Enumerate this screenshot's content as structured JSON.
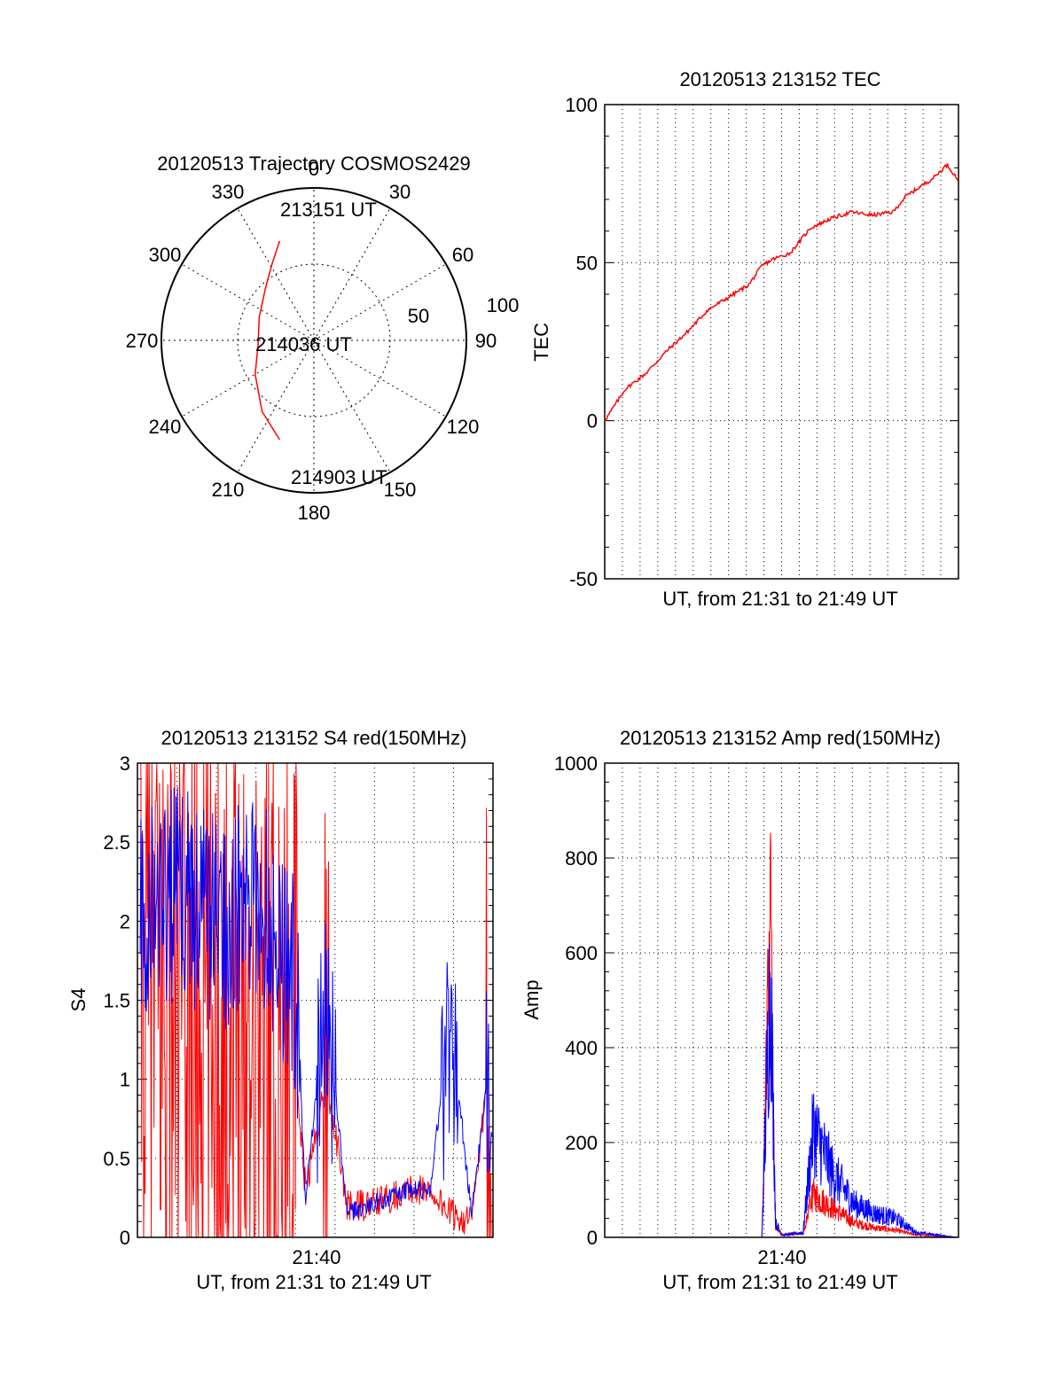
{
  "colors": {
    "red": "#ff0000",
    "blue": "#0000ff",
    "axis": "#000000",
    "grid": "#000000"
  },
  "chart_data": [
    {
      "type": "polar",
      "title": "20120513 Trajectory COSMOS2429",
      "angle_labels": [
        "0",
        "30",
        "60",
        "90",
        "120",
        "150",
        "180",
        "210",
        "240",
        "270",
        "300",
        "330"
      ],
      "radial_labels": [
        "50",
        "100"
      ],
      "rlim": [
        0,
        100
      ],
      "start_label": "213151 UT",
      "mid_label": "214036 UT",
      "end_label": "214903 UT",
      "track": {
        "name": "",
        "color": "#ff0000",
        "points": [
          {
            "az": 341,
            "el": 28
          },
          {
            "az": 332,
            "el": 38
          },
          {
            "az": 317,
            "el": 48
          },
          {
            "az": 293,
            "el": 55
          },
          {
            "az": 266,
            "el": 57
          },
          {
            "az": 240,
            "el": 50
          },
          {
            "az": 216,
            "el": 38
          },
          {
            "az": 199,
            "el": 28
          }
        ]
      }
    },
    {
      "type": "line",
      "title": "20120513 213152 TEC",
      "xlabel": "UT, from 21:31 to 21:49 UT",
      "ylabel": "TEC",
      "xlim": [
        "21:31:52",
        "21:49:03"
      ],
      "ylim": [
        -50,
        100
      ],
      "ytick_labels": [
        "100",
        "50",
        "0",
        "-50"
      ],
      "series": [
        {
          "name": "",
          "color": "#ff0000",
          "x": [
            "21:31:52",
            "21:32:52",
            "21:33:52",
            "21:34:52",
            "21:35:52",
            "21:36:52",
            "21:37:52",
            "21:38:52",
            "21:39:30",
            "21:40:00",
            "21:40:52",
            "21:41:52",
            "21:42:52",
            "21:43:52",
            "21:44:52",
            "21:45:52",
            "21:46:30",
            "21:47:52",
            "21:48:30",
            "21:49:03"
          ],
          "y": [
            0,
            10,
            15,
            22,
            28,
            35,
            39,
            43,
            49,
            51,
            53,
            61,
            64,
            66,
            65,
            66,
            71,
            77,
            81,
            76
          ]
        }
      ]
    },
    {
      "type": "line",
      "title": "20120513 213152 S4 red(150MHz)",
      "xlabel": "UT, from 21:31 to 21:49 UT",
      "ylabel": "S4",
      "xlim": [
        "21:31:52",
        "21:49:03"
      ],
      "ylim": [
        0,
        3
      ],
      "xtick_labels": [
        "21:40"
      ],
      "ytick_labels": [
        "3",
        "2.5",
        "2",
        "1.5",
        "1",
        "0.5",
        "0"
      ],
      "series": [
        {
          "name": "",
          "color": "#ff0000",
          "x": [
            "21:32",
            "21:34",
            "21:36",
            "21:38",
            "21:39:30",
            "21:40",
            "21:41",
            "21:42",
            "21:43",
            "21:44",
            "21:45",
            "21:46",
            "21:47",
            "21:48",
            "21:49"
          ],
          "y": [
            1.6,
            1.5,
            1.4,
            1.3,
            1.0,
            0.3,
            1.0,
            0.2,
            0.2,
            0.25,
            0.3,
            0.3,
            0.15,
            0.1,
            1.2
          ]
        },
        {
          "name": "",
          "color": "#0000ff",
          "x": [
            "21:32",
            "21:34",
            "21:36",
            "21:38",
            "21:39:30",
            "21:40",
            "21:41",
            "21:42",
            "21:43",
            "21:44",
            "21:45",
            "21:46",
            "21:47",
            "21:48",
            "21:49"
          ],
          "y": [
            2.1,
            2.2,
            2.0,
            2.1,
            1.6,
            0.25,
            1.5,
            0.15,
            0.2,
            0.25,
            0.3,
            0.3,
            1.4,
            0.15,
            1.2
          ]
        }
      ]
    },
    {
      "type": "line",
      "title": "20120513 213152 Amp red(150MHz)",
      "xlabel": "UT, from 21:31 to 21:49 UT",
      "ylabel": "Amp",
      "xlim": [
        "21:31:52",
        "21:49:03"
      ],
      "ylim": [
        0,
        1000
      ],
      "xtick_labels": [
        "21:40"
      ],
      "ytick_labels": [
        "1000",
        "800",
        "600",
        "400",
        "200",
        "0"
      ],
      "series": [
        {
          "name": "",
          "color": "#ff0000",
          "x": [
            "21:32",
            "21:39:30",
            "21:39:55",
            "21:40:10",
            "21:40:30",
            "21:41:30",
            "21:42",
            "21:43",
            "21:44",
            "21:45",
            "21:46",
            "21:47",
            "21:49"
          ],
          "y": [
            0,
            0,
            640,
            20,
            5,
            8,
            90,
            60,
            30,
            20,
            15,
            5,
            0
          ]
        },
        {
          "name": "",
          "color": "#0000ff",
          "x": [
            "21:32",
            "21:39:30",
            "21:39:55",
            "21:40:10",
            "21:40:30",
            "21:41:30",
            "21:42",
            "21:43",
            "21:44",
            "21:45",
            "21:46",
            "21:47",
            "21:49"
          ],
          "y": [
            0,
            0,
            560,
            30,
            5,
            10,
            230,
            130,
            70,
            50,
            40,
            10,
            0
          ]
        }
      ]
    }
  ]
}
